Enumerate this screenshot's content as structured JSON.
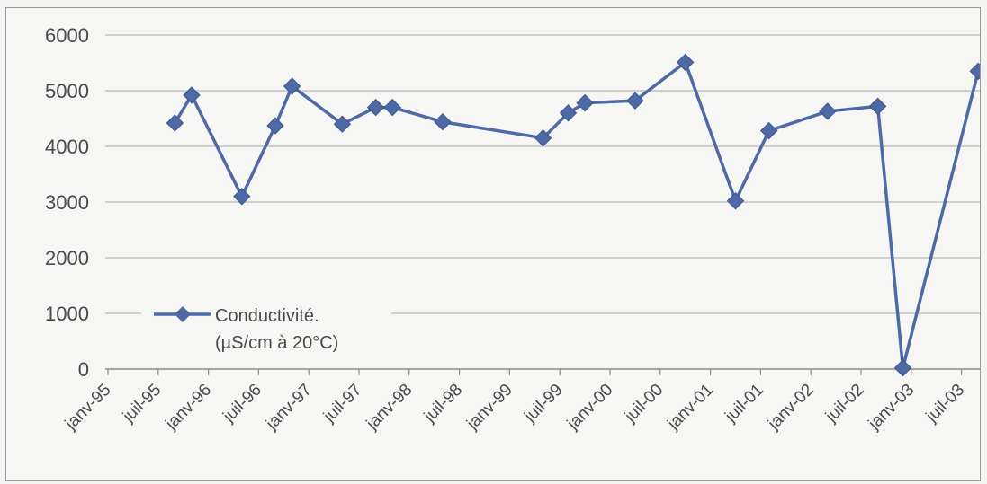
{
  "chart_data": {
    "type": "line",
    "title": "",
    "xlabel": "",
    "ylabel": "",
    "ylim": [
      0,
      6000
    ],
    "y_ticks": [
      0,
      1000,
      2000,
      3000,
      4000,
      5000,
      6000
    ],
    "x_tick_labels": [
      "janv-95",
      "juil-95",
      "janv-96",
      "juil-96",
      "janv-97",
      "juil-97",
      "janv-98",
      "juil-98",
      "janv-99",
      "juil-99",
      "janv-00",
      "juil-00",
      "janv-01",
      "juil-01",
      "janv-02",
      "juil-02",
      "janv-03",
      "juil-03"
    ],
    "grid": "horizontal",
    "legend_position": "lower-left",
    "series": [
      {
        "name": "Conductivité. (µS/cm à 20°C)",
        "color": "#4e6aa5",
        "marker": "diamond",
        "points": [
          {
            "x": "1995-09",
            "y": 4420
          },
          {
            "x": "1995-11",
            "y": 4920
          },
          {
            "x": "1996-05",
            "y": 3100
          },
          {
            "x": "1996-09",
            "y": 4370
          },
          {
            "x": "1996-11",
            "y": 5080
          },
          {
            "x": "1997-05",
            "y": 4400
          },
          {
            "x": "1997-09",
            "y": 4700
          },
          {
            "x": "1997-11",
            "y": 4700
          },
          {
            "x": "1998-05",
            "y": 4440
          },
          {
            "x": "1999-05",
            "y": 4150
          },
          {
            "x": "1999-08",
            "y": 4600
          },
          {
            "x": "1999-10",
            "y": 4780
          },
          {
            "x": "2000-04",
            "y": 4820
          },
          {
            "x": "2000-10",
            "y": 5510
          },
          {
            "x": "2001-04",
            "y": 3020
          },
          {
            "x": "2001-08",
            "y": 4280
          },
          {
            "x": "2002-03",
            "y": 4630
          },
          {
            "x": "2002-09",
            "y": 4720
          },
          {
            "x": "2002-12",
            "y": 20
          },
          {
            "x": "2003-09",
            "y": 5350
          }
        ]
      }
    ],
    "legend": {
      "label_line1": "Conductivité.",
      "label_line2": "(µS/cm à 20°C)"
    }
  }
}
